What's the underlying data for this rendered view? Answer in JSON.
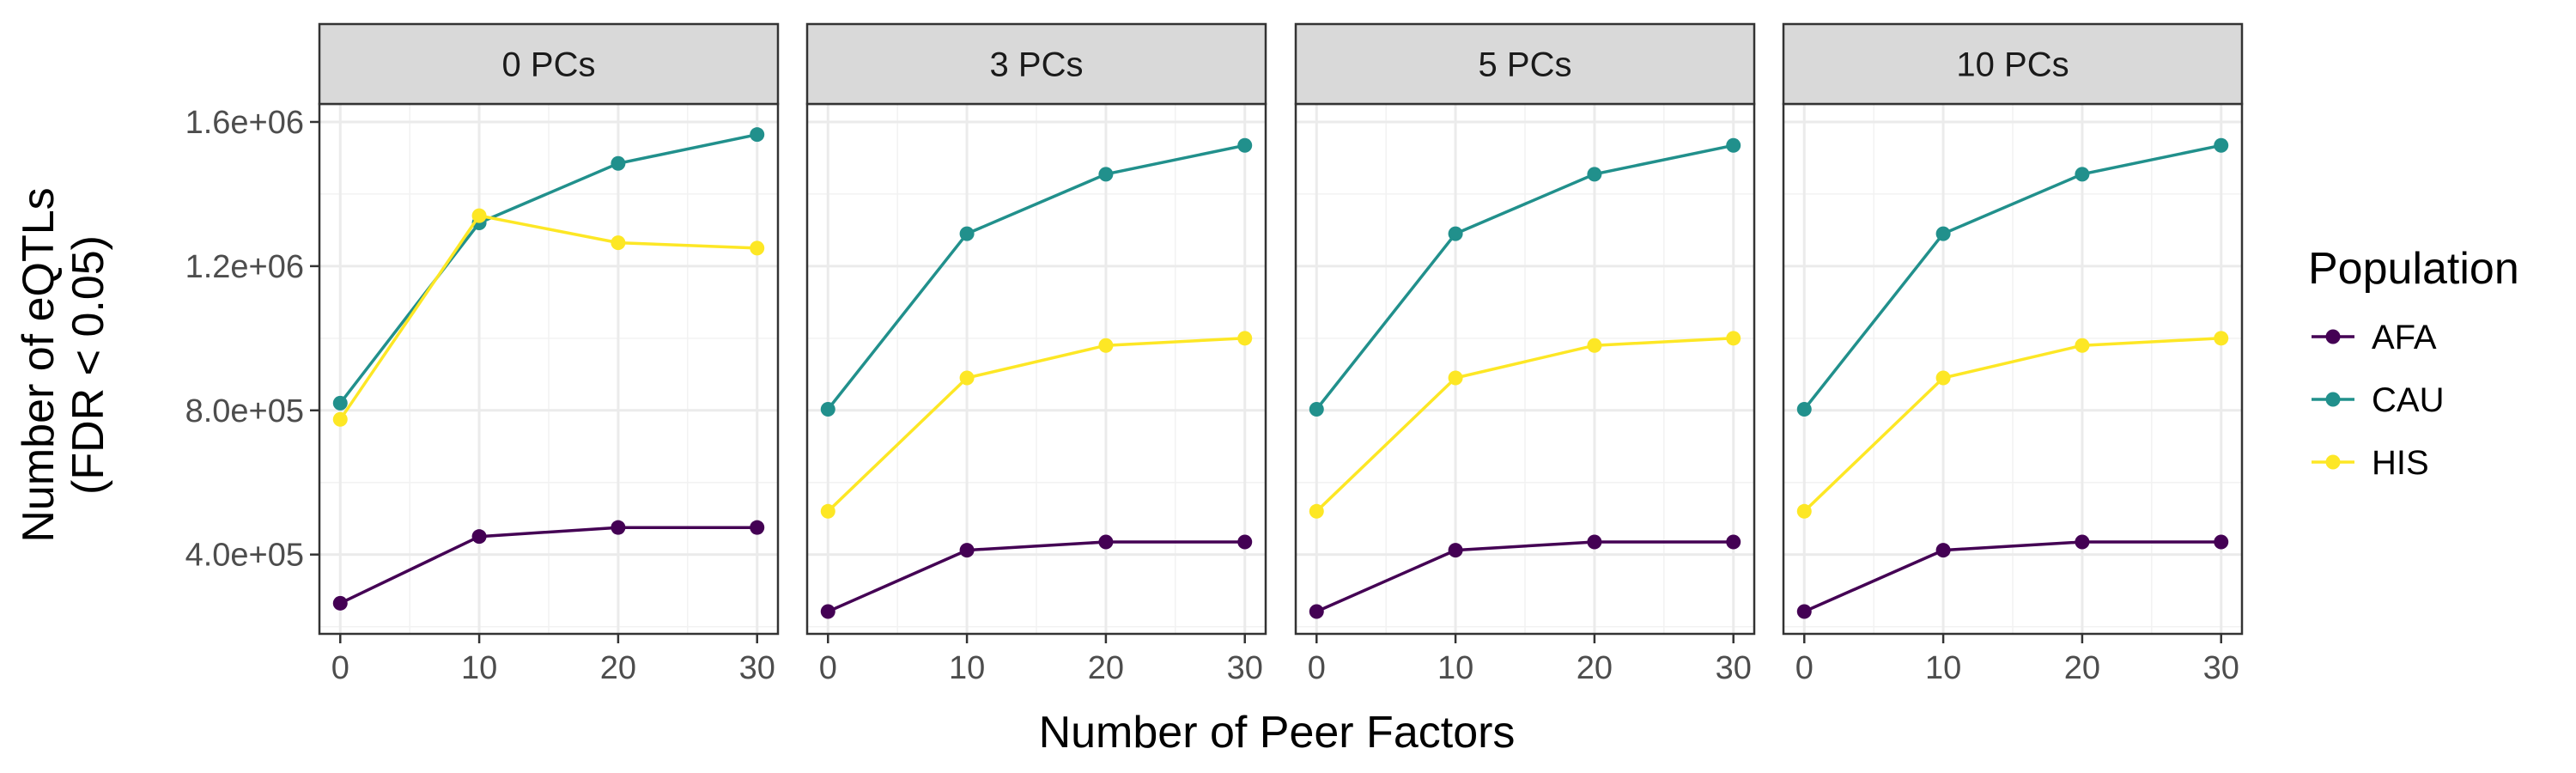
{
  "chart_data": {
    "type": "line",
    "xlabel": "Number of Peer Factors",
    "ylabel_lines": [
      "Number of eQTLs",
      "(FDR < 0.05)"
    ],
    "x": [
      0,
      10,
      20,
      30
    ],
    "x_ticks": [
      "0",
      "10",
      "20",
      "30"
    ],
    "xlim": [
      -1.5,
      31.5
    ],
    "ylim": [
      180000,
      1650000
    ],
    "y_ticks": [
      {
        "value": 400000,
        "label": "4.0e+05"
      },
      {
        "value": 800000,
        "label": "8.0e+05"
      },
      {
        "value": 1200000,
        "label": "1.2e+06"
      },
      {
        "value": 1600000,
        "label": "1.6e+06"
      }
    ],
    "legend": {
      "title": "Population",
      "position": "right",
      "entries": [
        {
          "name": "AFA",
          "color": "#440154"
        },
        {
          "name": "CAU",
          "color": "#21908C"
        },
        {
          "name": "HIS",
          "color": "#FDE725"
        }
      ]
    },
    "panels": [
      {
        "title": "0 PCs",
        "series": [
          {
            "name": "AFA",
            "values": [
              265000,
              450000,
              475000,
              475000
            ]
          },
          {
            "name": "CAU",
            "values": [
              820000,
              1320000,
              1485000,
              1565000
            ]
          },
          {
            "name": "HIS",
            "values": [
              775000,
              1340000,
              1265000,
              1250000
            ]
          }
        ]
      },
      {
        "title": "3 PCs",
        "series": [
          {
            "name": "AFA",
            "values": [
              242000,
              412000,
              435000,
              435000
            ]
          },
          {
            "name": "CAU",
            "values": [
              803000,
              1290000,
              1455000,
              1535000
            ]
          },
          {
            "name": "HIS",
            "values": [
              520000,
              890000,
              980000,
              1000000
            ]
          }
        ]
      },
      {
        "title": "5 PCs",
        "series": [
          {
            "name": "AFA",
            "values": [
              242000,
              412000,
              435000,
              435000
            ]
          },
          {
            "name": "CAU",
            "values": [
              803000,
              1290000,
              1455000,
              1535000
            ]
          },
          {
            "name": "HIS",
            "values": [
              520000,
              890000,
              980000,
              1000000
            ]
          }
        ]
      },
      {
        "title": "10 PCs",
        "series": [
          {
            "name": "AFA",
            "values": [
              242000,
              412000,
              435000,
              435000
            ]
          },
          {
            "name": "CAU",
            "values": [
              803000,
              1290000,
              1455000,
              1535000
            ]
          },
          {
            "name": "HIS",
            "values": [
              520000,
              890000,
              980000,
              1000000
            ]
          }
        ]
      }
    ]
  }
}
